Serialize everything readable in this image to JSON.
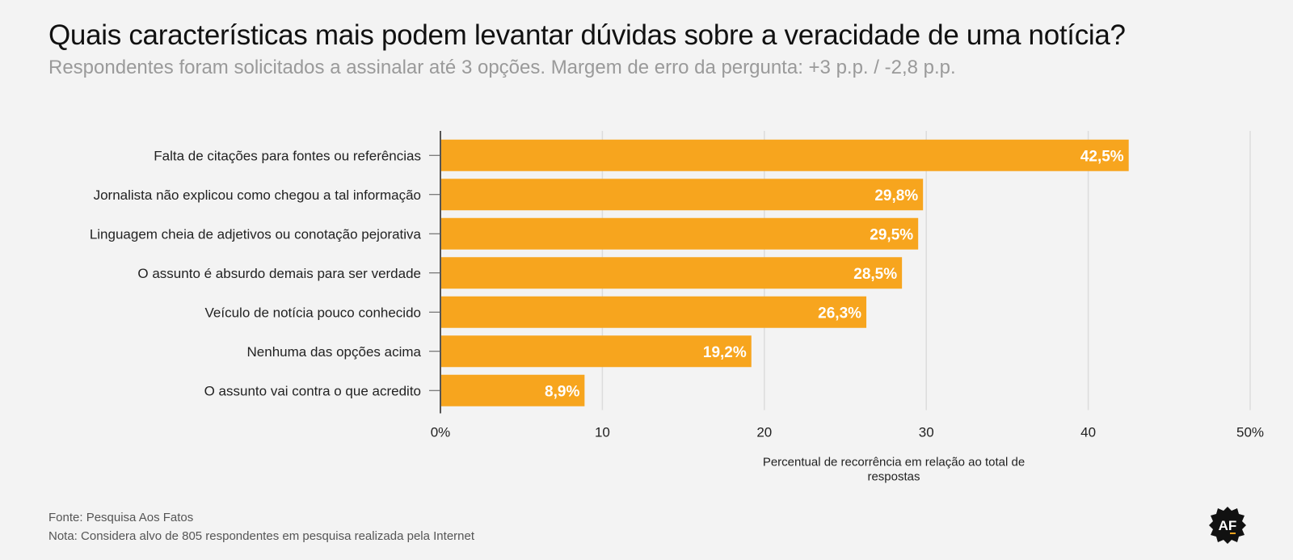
{
  "header": {
    "title": "Quais características mais podem levantar dúvidas sobre a veracidade de uma notícia?",
    "subtitle": "Respondentes foram solicitados a assinalar até 3 opções. Margem de erro da pergunta: +3 p.p. / -2,8 p.p."
  },
  "chart_data": {
    "type": "bar",
    "orientation": "horizontal",
    "categories": [
      "Falta de citações para fontes ou referências",
      "Jornalista não explicou como chegou a tal informação",
      "Linguagem cheia de adjetivos ou conotação pejorativa",
      "O assunto é absurdo demais para ser verdade",
      "Veículo de notícia pouco conhecido",
      "Nenhuma das opções acima",
      "O assunto vai contra o que acredito"
    ],
    "values": [
      42.5,
      29.8,
      29.5,
      28.5,
      26.3,
      19.2,
      8.9
    ],
    "value_labels": [
      "42,5%",
      "29,8%",
      "29,5%",
      "28,5%",
      "26,3%",
      "19,2%",
      "8,9%"
    ],
    "xlim": [
      0,
      50
    ],
    "xticks": [
      0,
      10,
      20,
      30,
      40,
      50
    ],
    "xtick_labels": [
      "0%",
      "10",
      "20",
      "30",
      "40",
      "50%"
    ],
    "xlabel_lines": [
      "Percentual de recorrência em relação ao total de",
      "respostas"
    ],
    "grid": true,
    "bar_color": "#f7a51e",
    "grid_color": "#dcdcdc",
    "axis_color": "#555555"
  },
  "footer": {
    "source": "Fonte: Pesquisa Aos Fatos",
    "note": "Nota: Considera alvo de 805 respondentes em pesquisa realizada pela Internet"
  },
  "logo": {
    "text": "AF",
    "icon": "aos-fatos-logo-icon"
  }
}
